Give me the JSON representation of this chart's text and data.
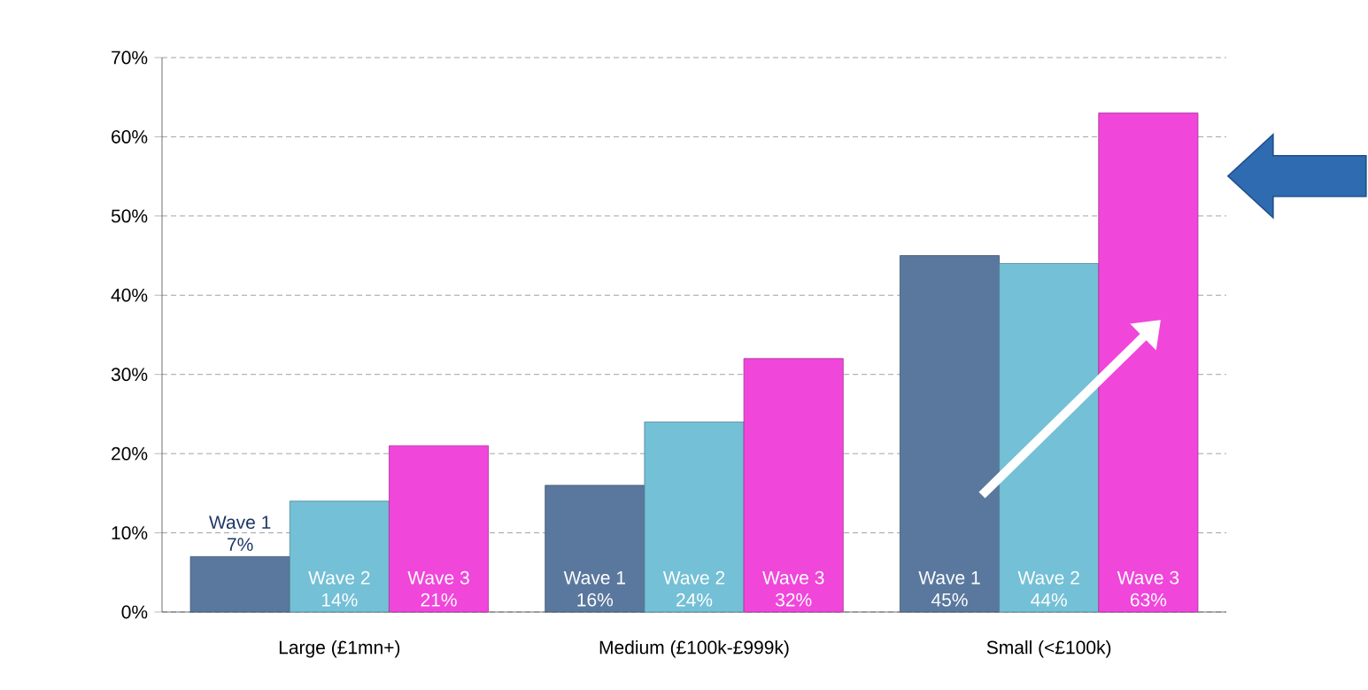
{
  "chart_data": {
    "type": "bar",
    "categories": [
      "Large (£1mn+)",
      "Medium (£100k-£999k)",
      "Small (<£100k)"
    ],
    "series": [
      {
        "name": "Wave 1",
        "color": "#5a789e",
        "values": [
          7,
          16,
          45
        ],
        "value_labels": [
          "7%",
          "16%",
          "45%"
        ]
      },
      {
        "name": "Wave 2",
        "color": "#74c0d6",
        "values": [
          14,
          24,
          44
        ],
        "value_labels": [
          "14%",
          "24%",
          "44%"
        ]
      },
      {
        "name": "Wave 3",
        "color": "#f046da",
        "values": [
          21,
          32,
          63
        ],
        "value_labels": [
          "21%",
          "32%",
          "63%"
        ]
      }
    ],
    "ylim": [
      0,
      70
    ],
    "yticks": [
      {
        "value": 0,
        "label": "0%"
      },
      {
        "value": 10,
        "label": "10%"
      },
      {
        "value": 20,
        "label": "20%"
      },
      {
        "value": 30,
        "label": "30%"
      },
      {
        "value": 40,
        "label": "40%"
      },
      {
        "value": 50,
        "label": "50%"
      },
      {
        "value": 60,
        "label": "60%"
      },
      {
        "value": 70,
        "label": "70%"
      }
    ],
    "grid": "y"
  }
}
